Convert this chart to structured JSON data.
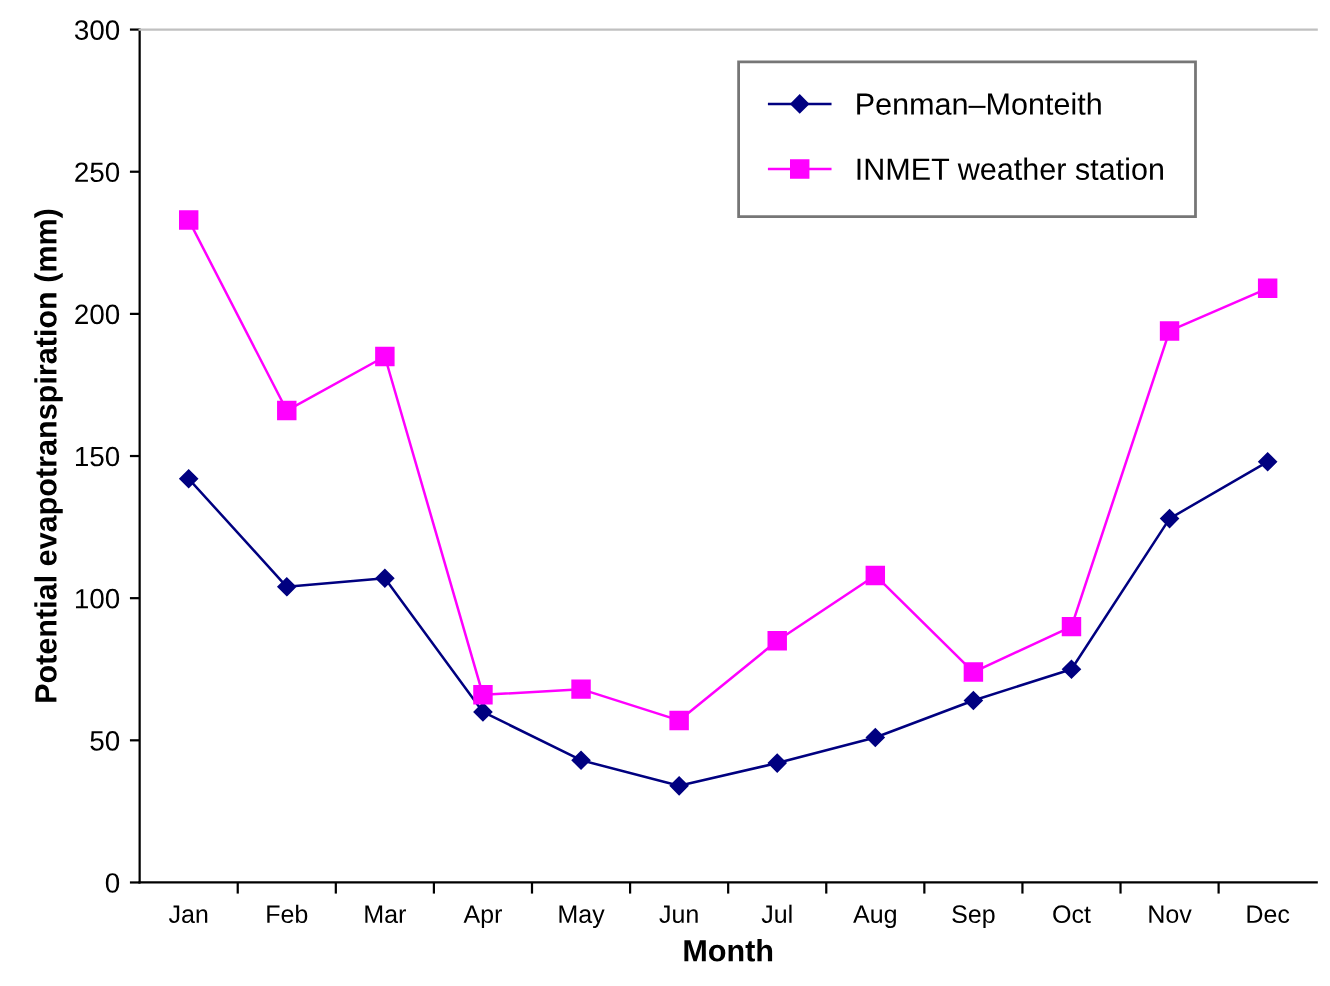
{
  "chart_data": {
    "type": "line",
    "xlabel": "Month",
    "ylabel": "Potential evapotranspiration (mm)",
    "categories": [
      "Jan",
      "Feb",
      "Mar",
      "Apr",
      "May",
      "Jun",
      "Jul",
      "Aug",
      "Sep",
      "Oct",
      "Nov",
      "Dec"
    ],
    "series": [
      {
        "name": "Penman–Monteith",
        "color": "#000080",
        "marker": "diamond",
        "values": [
          142,
          104,
          107,
          60,
          43,
          34,
          42,
          51,
          64,
          75,
          128,
          148
        ]
      },
      {
        "name": "INMET weather station",
        "color": "#ff00ff",
        "marker": "square",
        "values": [
          233,
          166,
          185,
          66,
          68,
          57,
          85,
          108,
          74,
          90,
          194,
          209
        ]
      }
    ],
    "ylim": [
      0,
      300
    ],
    "yticks": [
      0,
      50,
      100,
      150,
      200,
      250,
      300
    ],
    "grid": false,
    "legend": "top right",
    "line_style": "solid"
  }
}
